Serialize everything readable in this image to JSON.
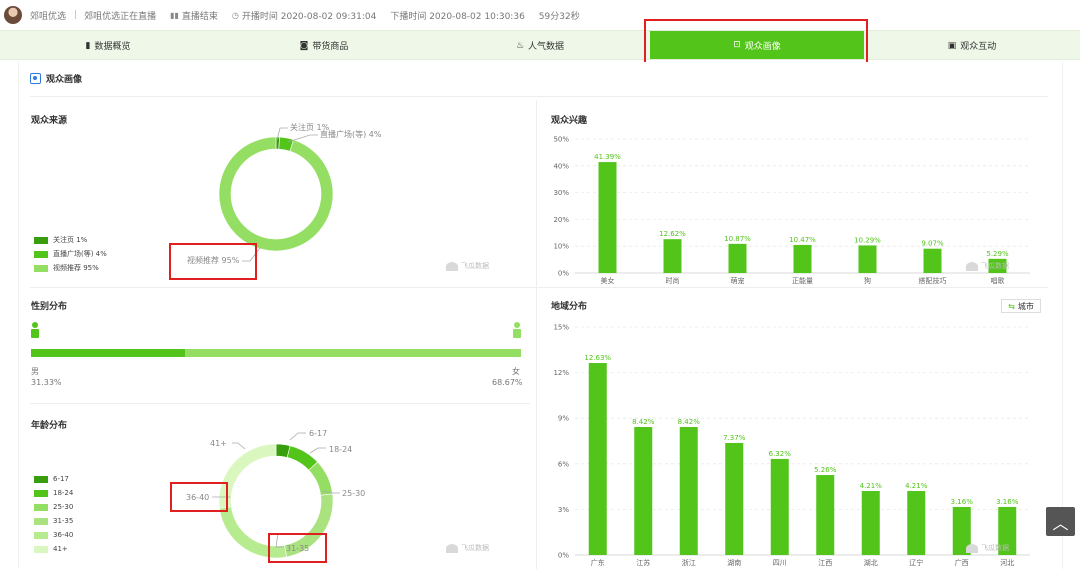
{
  "topbar": {
    "account": "郊咀优选",
    "status": "郊咀优选正在直播",
    "end_label": "直播结束",
    "start": "开播时间 2020-08-02 09:31:04",
    "stop": "下播时间 2020-08-02 10:30:36",
    "duration": "59分32秒"
  },
  "tabs": [
    {
      "label": "数据概览",
      "icon": "bar-chart-icon"
    },
    {
      "label": "带货商品",
      "icon": "shopping-bag-icon"
    },
    {
      "label": "人气数据",
      "icon": "flame-icon"
    },
    {
      "label": "观众画像",
      "icon": "portrait-icon",
      "active": true
    },
    {
      "label": "观众互动",
      "icon": "chat-icon"
    }
  ],
  "section_title": "观众画像",
  "audience_source": {
    "title": "观众来源",
    "legend": [
      {
        "label": "关注页 1%",
        "color": "#389e0d"
      },
      {
        "label": "直播广场(等) 4%",
        "color": "#52c41a"
      },
      {
        "label": "视频推荐 95%",
        "color": "#95de64"
      }
    ],
    "labels": [
      "关注页 1%",
      "直播广场(等) 4%",
      "视频推荐 95%"
    ]
  },
  "audience_interest": {
    "title": "观众兴趣"
  },
  "gender": {
    "title": "性别分布",
    "male_label": "男",
    "male_value": "31.33%",
    "female_label": "女",
    "female_value": "68.67%",
    "male_fraction": 0.3133
  },
  "age": {
    "title": "年龄分布",
    "legend": [
      {
        "label": "6-17",
        "color": "#389e0d"
      },
      {
        "label": "18-24",
        "color": "#52c41a"
      },
      {
        "label": "25-30",
        "color": "#95de64"
      },
      {
        "label": "31-35",
        "color": "#a9e27f"
      },
      {
        "label": "36-40",
        "color": "#b7eb8f"
      },
      {
        "label": "41+",
        "color": "#d9f7be"
      }
    ],
    "labels": [
      "6-17",
      "18-24",
      "25-30",
      "31-35",
      "36-40",
      "41+"
    ]
  },
  "region": {
    "title": "地域分布",
    "city_button": "城市"
  },
  "watermark": "飞瓜数据",
  "colors": {
    "accent": "#52c41a",
    "highlight": "#e02020"
  },
  "chart_data": [
    {
      "type": "pie",
      "title": "观众来源",
      "categories": [
        "关注页",
        "直播广场(等)",
        "视频推荐"
      ],
      "values": [
        1,
        4,
        95
      ],
      "colors": [
        "#389e0d",
        "#52c41a",
        "#95de64"
      ]
    },
    {
      "type": "bar",
      "title": "观众兴趣",
      "categories": [
        "美女",
        "时尚",
        "萌宠",
        "正能量",
        "狗",
        "搭配技巧",
        "唱歌"
      ],
      "values": [
        41.39,
        12.62,
        10.87,
        10.47,
        10.29,
        9.07,
        5.29
      ],
      "value_labels": [
        "41.39%",
        "12.62%",
        "10.87%",
        "10.47%",
        "10.29%",
        "9.07%",
        "5.29%"
      ],
      "ylim": [
        0,
        50
      ],
      "yticks": [
        "0%",
        "10%",
        "20%",
        "30%",
        "40%",
        "50%"
      ],
      "grid": true
    },
    {
      "type": "bar",
      "title": "性别分布",
      "categories": [
        "男",
        "女"
      ],
      "values": [
        31.33,
        68.67
      ]
    },
    {
      "type": "pie",
      "title": "年龄分布",
      "categories": [
        "6-17",
        "18-24",
        "25-30",
        "31-35",
        "36-40",
        "41+"
      ],
      "values": [
        4,
        9,
        10,
        24,
        26,
        27
      ],
      "colors": [
        "#389e0d",
        "#52c41a",
        "#95de64",
        "#a9e27f",
        "#b7eb8f",
        "#d9f7be"
      ]
    },
    {
      "type": "bar",
      "title": "地域分布",
      "categories": [
        "广东",
        "江苏",
        "浙江",
        "湖南",
        "四川",
        "江西",
        "湖北",
        "辽宁",
        "广西",
        "河北"
      ],
      "values": [
        12.63,
        8.42,
        8.42,
        7.37,
        6.32,
        5.26,
        4.21,
        4.21,
        3.16,
        3.16
      ],
      "value_labels": [
        "12.63%",
        "8.42%",
        "8.42%",
        "7.37%",
        "6.32%",
        "5.26%",
        "4.21%",
        "4.21%",
        "3.16%",
        "3.16%"
      ],
      "ylim": [
        0,
        15
      ],
      "yticks": [
        "0%",
        "3%",
        "6%",
        "9%",
        "12%",
        "15%"
      ],
      "grid": true
    }
  ]
}
